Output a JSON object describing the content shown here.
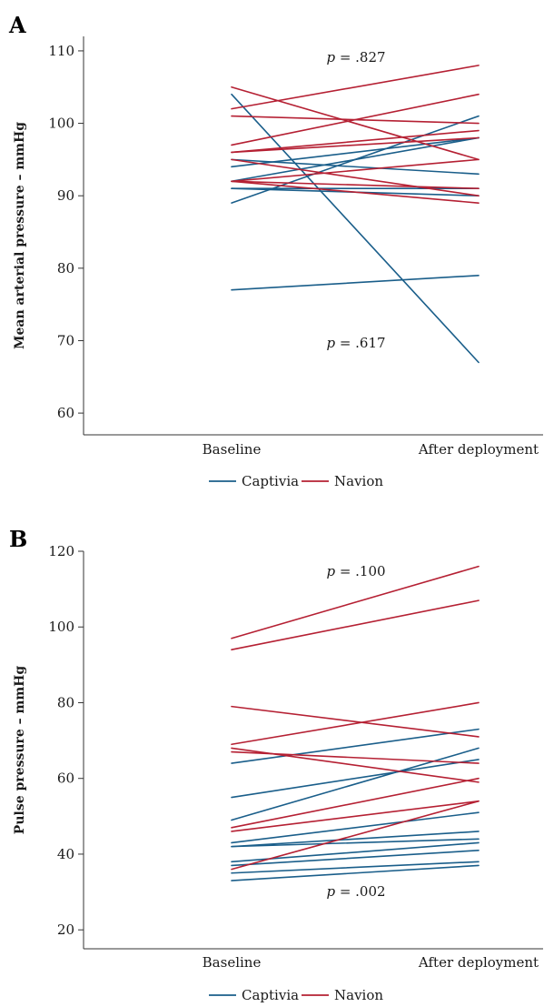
{
  "colors": {
    "Captivia": "#1a5e8a",
    "Navion": "#b52033"
  },
  "chart_data": [
    {
      "type": "line",
      "panel_label": "A",
      "ylabel": "Mean arterial pressure – mmHg",
      "categories": [
        "Baseline",
        "After deployment"
      ],
      "ylim": [
        57,
        112
      ],
      "yticks": [
        "60",
        "70",
        "80",
        "90",
        "100",
        "110"
      ],
      "legend": [
        "Captivia",
        "Navion"
      ],
      "annotations": [
        {
          "text": "p = .827",
          "p_label": "p",
          "eq": "=",
          "value": ".827"
        },
        {
          "text": "p = .617",
          "p_label": "p",
          "eq": "=",
          "value": ".617"
        }
      ],
      "series": [
        {
          "group": "Captivia",
          "values": [
            104,
            67
          ]
        },
        {
          "group": "Captivia",
          "values": [
            77,
            79
          ]
        },
        {
          "group": "Captivia",
          "values": [
            89,
            101
          ]
        },
        {
          "group": "Captivia",
          "values": [
            92,
            98
          ]
        },
        {
          "group": "Captivia",
          "values": [
            95,
            93
          ]
        },
        {
          "group": "Captivia",
          "values": [
            91,
            91
          ]
        },
        {
          "group": "Captivia",
          "values": [
            94,
            98
          ]
        },
        {
          "group": "Captivia",
          "values": [
            91,
            90
          ]
        },
        {
          "group": "Navion",
          "values": [
            105,
            95
          ]
        },
        {
          "group": "Navion",
          "values": [
            102,
            108
          ]
        },
        {
          "group": "Navion",
          "values": [
            101,
            100
          ]
        },
        {
          "group": "Navion",
          "values": [
            97,
            104
          ]
        },
        {
          "group": "Navion",
          "values": [
            96,
            99
          ]
        },
        {
          "group": "Navion",
          "values": [
            96,
            98
          ]
        },
        {
          "group": "Navion",
          "values": [
            95,
            90
          ]
        },
        {
          "group": "Navion",
          "values": [
            92,
            95
          ]
        },
        {
          "group": "Navion",
          "values": [
            92,
            89
          ]
        },
        {
          "group": "Navion",
          "values": [
            92,
            91
          ]
        }
      ]
    },
    {
      "type": "line",
      "panel_label": "B",
      "ylabel": "Pulse pressure – mmHg",
      "categories": [
        "Baseline",
        "After deployment"
      ],
      "ylim": [
        15,
        120
      ],
      "yticks": [
        "20",
        "40",
        "60",
        "80",
        "100",
        "120"
      ],
      "legend": [
        "Captivia",
        "Navion"
      ],
      "annotations": [
        {
          "text": "p = .100",
          "p_label": "p",
          "eq": "=",
          "value": ".100"
        },
        {
          "text": "p = .002",
          "p_label": "p",
          "eq": "=",
          "value": ".002"
        }
      ],
      "series": [
        {
          "group": "Captivia",
          "values": [
            64,
            73
          ]
        },
        {
          "group": "Captivia",
          "values": [
            55,
            65
          ]
        },
        {
          "group": "Captivia",
          "values": [
            49,
            68
          ]
        },
        {
          "group": "Captivia",
          "values": [
            43,
            51
          ]
        },
        {
          "group": "Captivia",
          "values": [
            42,
            46
          ]
        },
        {
          "group": "Captivia",
          "values": [
            42,
            44
          ]
        },
        {
          "group": "Captivia",
          "values": [
            38,
            43
          ]
        },
        {
          "group": "Captivia",
          "values": [
            37,
            41
          ]
        },
        {
          "group": "Captivia",
          "values": [
            35,
            38
          ]
        },
        {
          "group": "Captivia",
          "values": [
            33,
            37
          ]
        },
        {
          "group": "Navion",
          "values": [
            97,
            116
          ]
        },
        {
          "group": "Navion",
          "values": [
            94,
            107
          ]
        },
        {
          "group": "Navion",
          "values": [
            79,
            71
          ]
        },
        {
          "group": "Navion",
          "values": [
            69,
            80
          ]
        },
        {
          "group": "Navion",
          "values": [
            68,
            59
          ]
        },
        {
          "group": "Navion",
          "values": [
            67,
            64
          ]
        },
        {
          "group": "Navion",
          "values": [
            47,
            60
          ]
        },
        {
          "group": "Navion",
          "values": [
            46,
            54
          ]
        },
        {
          "group": "Navion",
          "values": [
            36,
            54
          ]
        }
      ]
    }
  ]
}
